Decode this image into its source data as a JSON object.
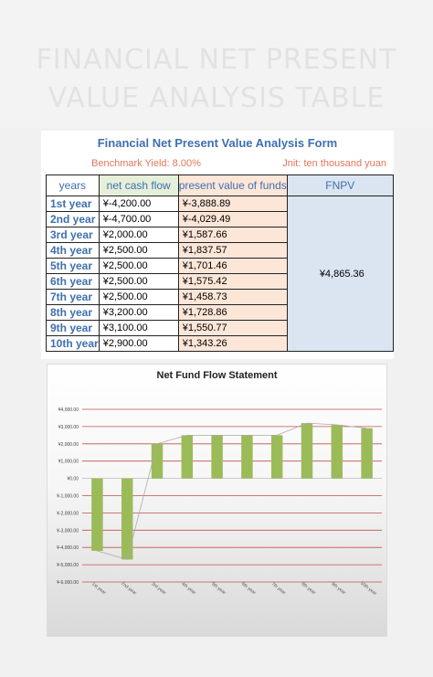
{
  "hero": {
    "line1": "FINANCIAL NET PRESENT",
    "line2": "VALUE ANALYSIS TABLE"
  },
  "form": {
    "title": "Financial Net Present Value Analysis Form",
    "benchmark": "Benchmark Yield: 8.00%",
    "unit": "Jnit: ten thousand yuan",
    "headers": {
      "years": "years",
      "ncf": "net cash flow",
      "pv": "present value of funds",
      "fnpv": "FNPV"
    },
    "fnpv_value": "¥4,865.36",
    "rows": [
      {
        "year": "1st year",
        "ncf": "¥-4,200.00",
        "pv": "¥-3,888.89"
      },
      {
        "year": "2nd year",
        "ncf": "¥-4,700.00",
        "pv": "¥-4,029.49"
      },
      {
        "year": "3rd year",
        "ncf": "¥2,000.00",
        "pv": "¥1,587.66"
      },
      {
        "year": "4th year",
        "ncf": "¥2,500.00",
        "pv": "¥1,837.57"
      },
      {
        "year": "5th year",
        "ncf": "¥2,500.00",
        "pv": "¥1,701.46"
      },
      {
        "year": "6th year",
        "ncf": "¥2,500.00",
        "pv": "¥1,575.42"
      },
      {
        "year": "7th year",
        "ncf": "¥2,500.00",
        "pv": "¥1,458.73"
      },
      {
        "year": "8th year",
        "ncf": "¥3,200.00",
        "pv": "¥1,728.86"
      },
      {
        "year": "9th year",
        "ncf": "¥3,100.00",
        "pv": "¥1,550.77"
      },
      {
        "year": "10th year",
        "ncf": "¥2,900.00",
        "pv": "¥1,343.26"
      }
    ]
  },
  "colors": {
    "bar": "#9bbb59",
    "line": "#aaaaaa",
    "grid": "#c0504d",
    "accent": "#3f6fb0"
  },
  "chart_data": {
    "type": "bar",
    "title": "Net Fund Flow Statement",
    "categories": [
      "1st year",
      "2nd year",
      "3rd year",
      "4th year",
      "5th year",
      "6th year",
      "7th year",
      "8th year",
      "9th year",
      "10th year"
    ],
    "values": [
      -4200,
      -4700,
      2000,
      2500,
      2500,
      2500,
      2500,
      3200,
      3100,
      2900
    ],
    "line_values": [
      -4200,
      -4700,
      2000,
      2500,
      2500,
      2500,
      2500,
      3200,
      3100,
      2900
    ],
    "ylim": [
      -6000,
      4000
    ],
    "yticks": [
      4000,
      3000,
      2000,
      1000,
      0,
      -1000,
      -2000,
      -3000,
      -4000,
      -5000,
      -6000
    ],
    "ytick_labels": [
      "¥4,000.00",
      "¥3,000.00",
      "¥2,000.00",
      "¥1,000.00",
      "¥0.00",
      "¥-1,000.00",
      "¥-2,000.00",
      "¥-3,000.00",
      "¥-4,000.00",
      "¥-5,000.00",
      "¥-6,000.00"
    ],
    "grid": true,
    "xlabel": "",
    "ylabel": ""
  }
}
